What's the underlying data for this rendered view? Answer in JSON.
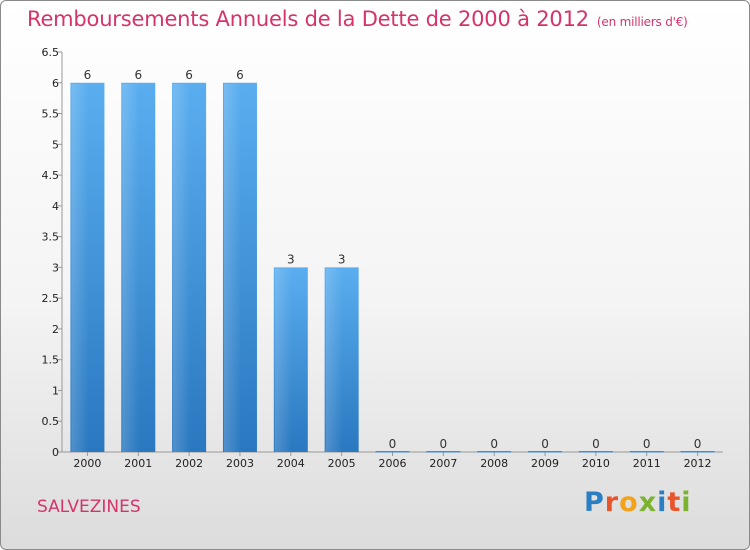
{
  "header": {
    "title": "Remboursements Annuels de la Dette de 2000 à 2012",
    "unit": "(en milliers d'€)"
  },
  "footer": {
    "commune": "SALVEZINES",
    "logo_letters": [
      {
        "ch": "P",
        "color": "#2a7fc4"
      },
      {
        "ch": "r",
        "color": "#e8552a"
      },
      {
        "ch": "o",
        "color": "#f2a31b"
      },
      {
        "ch": "x",
        "color": "#7bb32e"
      },
      {
        "ch": "i",
        "color": "#2a7fc4"
      },
      {
        "ch": "t",
        "color": "#e8552a"
      },
      {
        "ch": "i",
        "color": "#7bb32e"
      }
    ]
  },
  "chart_data": {
    "type": "bar",
    "title": "Remboursements Annuels de la Dette de 2000 à 2012",
    "subtitle": "(en milliers d'€)",
    "categories": [
      "2000",
      "2001",
      "2002",
      "2003",
      "2004",
      "2005",
      "2006",
      "2007",
      "2008",
      "2009",
      "2010",
      "2011",
      "2012"
    ],
    "values": [
      6,
      6,
      6,
      6,
      3,
      3,
      0,
      0,
      0,
      0,
      0,
      0,
      0
    ],
    "data_labels": [
      "6",
      "6",
      "6",
      "6",
      "3",
      "3",
      "0",
      "0",
      "0",
      "0",
      "0",
      "0",
      "0"
    ],
    "ylim": [
      0,
      6.5
    ],
    "yticks": [
      "0",
      "0.5",
      "1",
      "1.5",
      "2",
      "2.5",
      "3",
      "3.5",
      "4",
      "4.5",
      "5",
      "5.5",
      "6",
      "6.5"
    ],
    "grid": false,
    "bar_color": "#3d8fd6"
  }
}
